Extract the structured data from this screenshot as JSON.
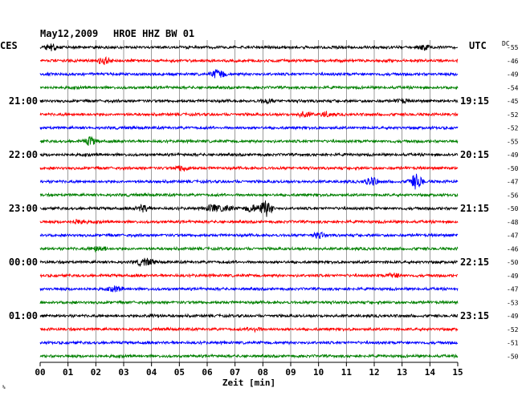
{
  "header": {
    "date": "May12,2009",
    "station": "HROE HHZ BW 01",
    "left_zone": "CES",
    "right_zone": "UTC",
    "dc_label": "DC",
    "corner_mark": "%"
  },
  "chart_data": {
    "type": "line",
    "title": "May12,2009   HROE HHZ BW 01",
    "xlabel": "Zeit [min]",
    "xlim": [
      0,
      15
    ],
    "x_ticks": [
      "00",
      "01",
      "02",
      "03",
      "04",
      "05",
      "06",
      "07",
      "08",
      "09",
      "10",
      "11",
      "12",
      "13",
      "14",
      "15"
    ],
    "grid": true,
    "rows": 24,
    "row_colors": [
      "#000000",
      "#ff0000",
      "#0000ff",
      "#008000"
    ],
    "left_time_labels": [
      {
        "row": 4,
        "label": "21:00"
      },
      {
        "row": 8,
        "label": "22:00"
      },
      {
        "row": 12,
        "label": "23:00"
      },
      {
        "row": 16,
        "label": "00:00"
      },
      {
        "row": 20,
        "label": "01:00"
      }
    ],
    "right_time_labels": [
      {
        "row": 4,
        "label": "19:15"
      },
      {
        "row": 8,
        "label": "20:15"
      },
      {
        "row": 12,
        "label": "21:15"
      },
      {
        "row": 16,
        "label": "22:15"
      },
      {
        "row": 20,
        "label": "23:15"
      }
    ],
    "dc_offsets": [
      -55,
      -46,
      -49,
      -54,
      -45,
      -52,
      -52,
      -55,
      -49,
      -50,
      -47,
      -56,
      -50,
      -48,
      -47,
      -46,
      -50,
      -49,
      -47,
      -53,
      -49,
      -52,
      -51,
      -50
    ],
    "events": [
      {
        "row": 0,
        "minute": 0.4,
        "amp": 0.45
      },
      {
        "row": 0,
        "minute": 13.8,
        "amp": 0.3
      },
      {
        "row": 1,
        "minute": 2.3,
        "amp": 0.5
      },
      {
        "row": 2,
        "minute": 6.4,
        "amp": 0.65
      },
      {
        "row": 4,
        "minute": 8.1,
        "amp": 0.3
      },
      {
        "row": 4,
        "minute": 13.0,
        "amp": 0.25
      },
      {
        "row": 5,
        "minute": 9.5,
        "amp": 0.35
      },
      {
        "row": 5,
        "minute": 10.3,
        "amp": 0.3
      },
      {
        "row": 7,
        "minute": 1.8,
        "amp": 0.55
      },
      {
        "row": 9,
        "minute": 5.1,
        "amp": 0.35
      },
      {
        "row": 10,
        "minute": 11.9,
        "amp": 0.6
      },
      {
        "row": 10,
        "minute": 13.5,
        "amp": 1.0
      },
      {
        "row": 12,
        "minute": 3.7,
        "amp": 0.45
      },
      {
        "row": 12,
        "minute": 6.2,
        "amp": 0.5
      },
      {
        "row": 12,
        "minute": 6.7,
        "amp": 0.4
      },
      {
        "row": 12,
        "minute": 7.6,
        "amp": 0.5
      },
      {
        "row": 12,
        "minute": 8.1,
        "amp": 1.1
      },
      {
        "row": 13,
        "minute": 1.4,
        "amp": 0.35
      },
      {
        "row": 14,
        "minute": 10.0,
        "amp": 0.35
      },
      {
        "row": 15,
        "minute": 2.1,
        "amp": 0.4
      },
      {
        "row": 16,
        "minute": 3.6,
        "amp": 0.3
      },
      {
        "row": 16,
        "minute": 3.9,
        "amp": 0.35
      },
      {
        "row": 17,
        "minute": 12.7,
        "amp": 0.3
      },
      {
        "row": 18,
        "minute": 2.7,
        "amp": 0.35
      },
      {
        "row": 20,
        "minute": 4.0,
        "amp": 0.2
      },
      {
        "row": 21,
        "minute": 7.7,
        "amp": 0.25
      }
    ]
  }
}
